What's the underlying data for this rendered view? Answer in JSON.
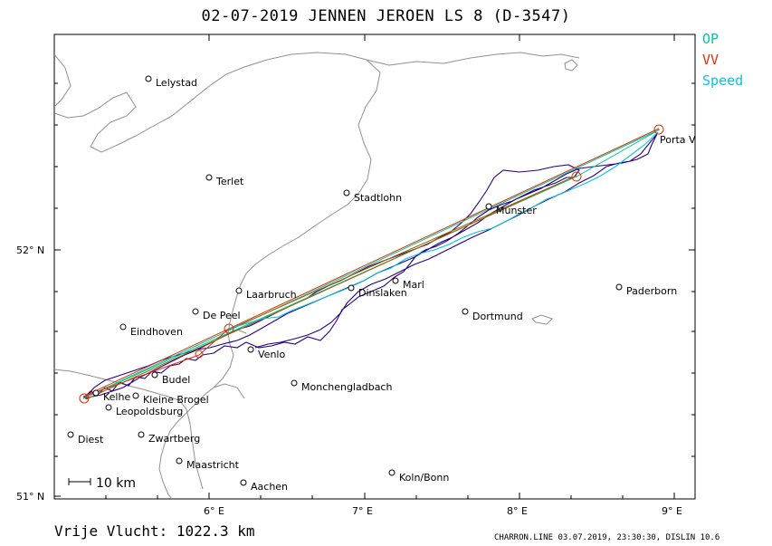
{
  "header": {
    "title": "02-07-2019    JENNEN JEROEN    LS 8 (D-3547)"
  },
  "legend": [
    {
      "label": "OP",
      "color": "#00c8a0"
    },
    {
      "label": "VV",
      "color": "#e03000"
    },
    {
      "label": "Speed",
      "color": "#00c8e0"
    }
  ],
  "axes": {
    "x_ticks": [
      "6° E",
      "7° E",
      "8° E",
      "9° E"
    ],
    "y_ticks": [
      "52° N",
      "51° N"
    ]
  },
  "scale_bar": {
    "label": "10 km"
  },
  "cities": [
    {
      "name": "Lelystad"
    },
    {
      "name": "Terlet"
    },
    {
      "name": "Stadtlohn"
    },
    {
      "name": "Munster"
    },
    {
      "name": "Porta V"
    },
    {
      "name": "Laarbruch"
    },
    {
      "name": "Marl"
    },
    {
      "name": "Dinslaken"
    },
    {
      "name": "Paderborn"
    },
    {
      "name": "De Peel"
    },
    {
      "name": "Dortmund"
    },
    {
      "name": "Eindhoven"
    },
    {
      "name": "Venlo"
    },
    {
      "name": "Budel"
    },
    {
      "name": "Monchengladbach"
    },
    {
      "name": "Kelhe"
    },
    {
      "name": "Kleine Brogel"
    },
    {
      "name": "Leopoldsburg"
    },
    {
      "name": "Diest"
    },
    {
      "name": "Zwartberg"
    },
    {
      "name": "Maastricht"
    },
    {
      "name": "Koln/Bonn"
    },
    {
      "name": "Aachen"
    }
  ],
  "footer": {
    "distance": "Vrije Vlucht: 1022.3 km",
    "credit": "CHARRON.LINE 03.07.2019, 23:30:30, DISLIN 10.6"
  },
  "colors": {
    "track": "#2a0080",
    "op_line": "#00c8a0",
    "vv_line": "#e03000",
    "speed_line": "#00c8e0",
    "border": "#909090",
    "turnpoint": "#e03000"
  }
}
